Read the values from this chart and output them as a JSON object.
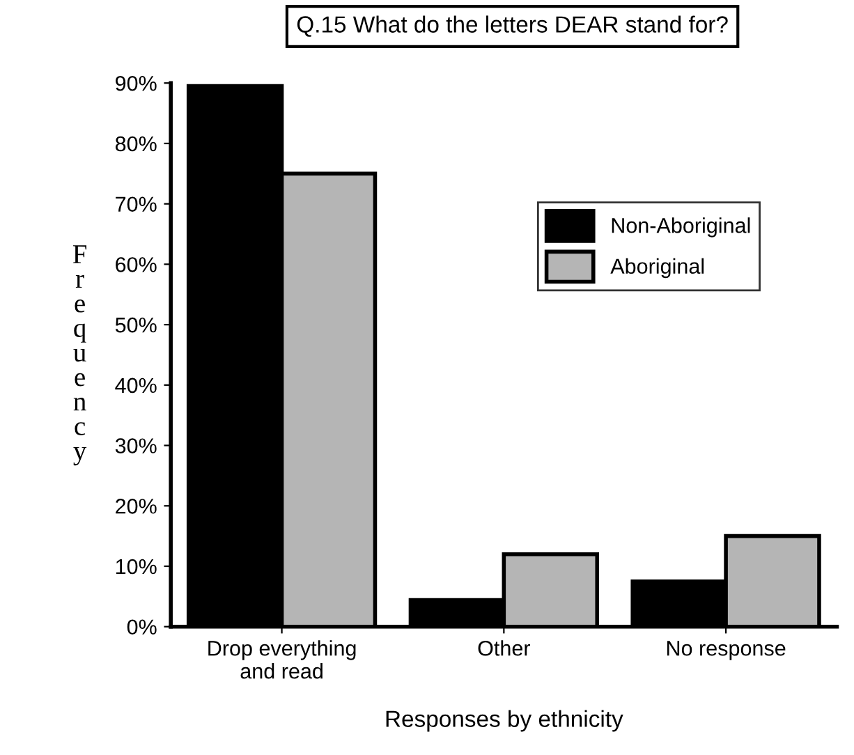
{
  "chart_data": {
    "type": "bar",
    "title": "Q.15 What do the letters DEAR stand for?",
    "xlabel": "Responses by ethnicity",
    "ylabel": "Frequency",
    "categories": [
      "Drop everything\nand read",
      "Other",
      "No response"
    ],
    "series": [
      {
        "name": "Non-Aboriginal",
        "color": "#000000",
        "values": [
          89.5,
          4.4,
          7.5
        ]
      },
      {
        "name": "Aboriginal",
        "color": "#b5b5b5",
        "values": [
          75,
          12,
          15
        ]
      }
    ],
    "ylim": [
      0,
      90
    ],
    "yticks": [
      {
        "value": 0,
        "label": "0%"
      },
      {
        "value": 10,
        "label": "10%"
      },
      {
        "value": 20,
        "label": "20%"
      },
      {
        "value": 30,
        "label": "30%"
      },
      {
        "value": 40,
        "label": "40%"
      },
      {
        "value": 50,
        "label": "50%"
      },
      {
        "value": 60,
        "label": "60%"
      },
      {
        "value": 70,
        "label": "70%"
      },
      {
        "value": 80,
        "label": "80%"
      },
      {
        "value": 90,
        "label": "90%"
      }
    ],
    "legend": "top right",
    "grid": false
  }
}
